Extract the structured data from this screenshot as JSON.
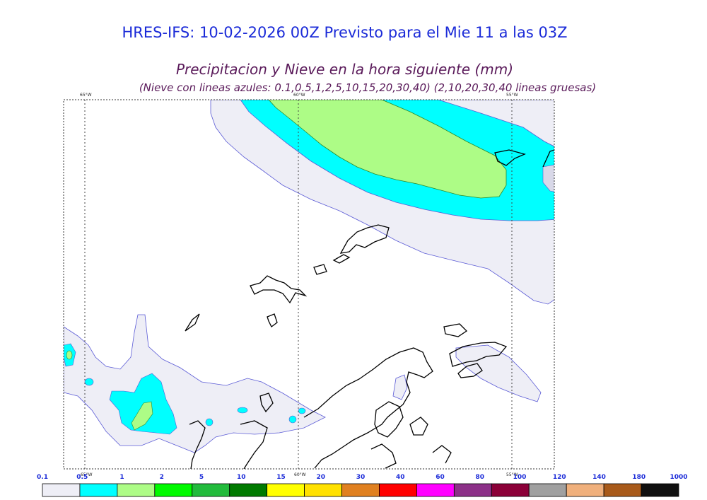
{
  "header": {
    "title": "HRES-IFS: 10-02-2026 00Z Previsto para el Mie 11 a las 03Z",
    "subtitle": "Precipitacion y Nieve en la hora siguiente (mm)",
    "note": "(Nieve con lineas azules: 0.1,0.5,1,2,5,10,15,20,30,40)  (2,10,20,30,40 lineas gruesas)"
  },
  "map": {
    "meridian_labels_top": [
      "65°W",
      "60°W",
      "55°W"
    ],
    "meridian_labels_bottom": [
      "65°W",
      "60°W",
      "55°W"
    ]
  },
  "legend": {
    "ticks": [
      "0.1",
      "0.5",
      "1",
      "2",
      "5",
      "10",
      "15",
      "20",
      "30",
      "40",
      "60",
      "80",
      "100",
      "120",
      "140",
      "180",
      "1000"
    ],
    "colors": [
      "#eeeef6",
      "#00ffff",
      "#adfc86",
      "#00fa00",
      "#22bb3c",
      "#007a00",
      "#ffff00",
      "#ffe100",
      "#e08020",
      "#ff0000",
      "#ff00ff",
      "#8c3088",
      "#8b0038",
      "#a0a0a0",
      "#f0b07c",
      "#a85a1a",
      "#101010"
    ]
  }
}
